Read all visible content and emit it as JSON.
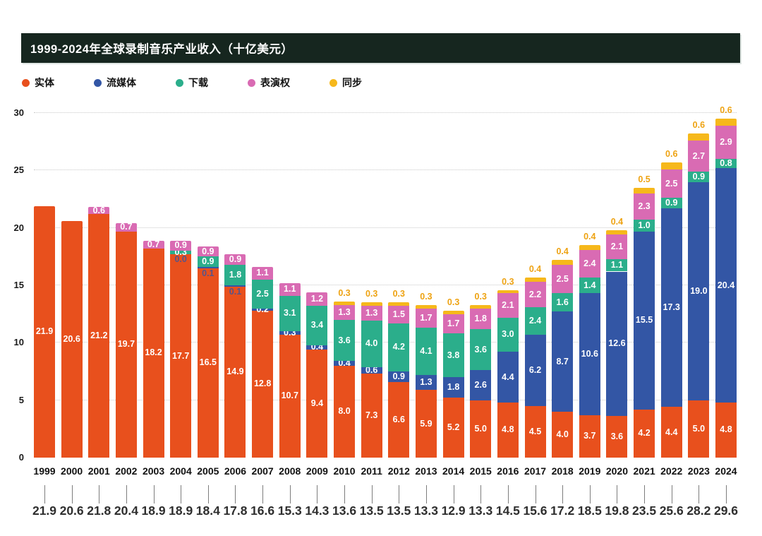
{
  "title": "1999-2024年全球录制音乐产业收入（十亿美元）",
  "colors": {
    "background": "#ffffff",
    "title_bar_bg": "#16261f",
    "title_text": "#ffffff",
    "gridline": "#c9c9c9",
    "axis_text": "#1a1a1a",
    "year_text": "#111111",
    "total_text": "#2e2e2e",
    "tick_line": "#7d7d7d",
    "segment_label_text": "#ffffff"
  },
  "legend": {
    "items": [
      {
        "label": "实体",
        "color": "#e8501d"
      },
      {
        "label": "流媒体",
        "color": "#3356a5"
      },
      {
        "label": "下载",
        "color": "#2bae8b"
      },
      {
        "label": "表演权",
        "color": "#d96bb3"
      },
      {
        "label": "同步",
        "color": "#f6b81b"
      }
    ]
  },
  "chart_data": {
    "type": "bar",
    "stacked": true,
    "title": "1999-2024年全球录制音乐产业收入（十亿美元）",
    "unit": "十亿美元 (USD billions)",
    "legend_position": "top",
    "grid": "dotted-horizontal",
    "ylim": [
      0,
      30
    ],
    "yticks": [
      0,
      5,
      10,
      15,
      20,
      25,
      30
    ],
    "categories": [
      "1999",
      "2000",
      "2001",
      "2002",
      "2003",
      "2004",
      "2005",
      "2006",
      "2007",
      "2008",
      "2009",
      "2010",
      "2011",
      "2012",
      "2013",
      "2014",
      "2015",
      "2016",
      "2017",
      "2018",
      "2019",
      "2020",
      "2021",
      "2022",
      "2023",
      "2024"
    ],
    "series": [
      {
        "name": "实体",
        "key": "physical",
        "color": "#e8501d",
        "values": [
          21.9,
          20.6,
          21.2,
          19.7,
          18.2,
          17.7,
          16.5,
          14.9,
          12.8,
          10.7,
          9.4,
          8.0,
          7.3,
          6.6,
          5.9,
          5.2,
          5.0,
          4.8,
          4.5,
          4.0,
          3.7,
          3.6,
          4.2,
          4.4,
          5.0,
          4.8
        ]
      },
      {
        "name": "流媒体",
        "key": "streaming",
        "color": "#3356a5",
        "values": [
          null,
          null,
          null,
          null,
          null,
          0.0,
          0.1,
          0.1,
          0.2,
          0.3,
          0.4,
          0.4,
          0.6,
          0.9,
          1.3,
          1.8,
          2.6,
          4.4,
          6.2,
          8.7,
          10.6,
          12.6,
          15.5,
          17.3,
          19.0,
          20.4
        ]
      },
      {
        "name": "下载",
        "key": "download",
        "color": "#2bae8b",
        "values": [
          null,
          null,
          null,
          null,
          null,
          0.3,
          0.9,
          1.8,
          2.5,
          3.1,
          3.4,
          3.6,
          4.0,
          4.2,
          4.1,
          3.8,
          3.6,
          3.0,
          2.4,
          1.6,
          1.4,
          1.1,
          1.0,
          0.9,
          0.9,
          0.8
        ]
      },
      {
        "name": "表演权",
        "key": "performance",
        "color": "#d96bb3",
        "values": [
          null,
          null,
          0.6,
          0.7,
          0.7,
          0.9,
          0.9,
          0.9,
          1.1,
          1.1,
          1.2,
          1.3,
          1.3,
          1.5,
          1.7,
          1.7,
          1.8,
          2.1,
          2.2,
          2.5,
          2.4,
          2.1,
          2.3,
          2.5,
          2.7,
          2.9
        ]
      },
      {
        "name": "同步",
        "key": "sync",
        "color": "#f6b81b",
        "label_color": "#eea313",
        "label_position": "above",
        "values": [
          null,
          null,
          null,
          null,
          null,
          null,
          null,
          null,
          null,
          null,
          null,
          0.3,
          0.3,
          0.3,
          0.3,
          0.3,
          0.3,
          0.3,
          0.4,
          0.4,
          0.4,
          0.4,
          0.5,
          0.6,
          0.6,
          0.6
        ]
      }
    ],
    "totals": [
      21.9,
      20.6,
      21.8,
      20.4,
      18.9,
      18.9,
      18.4,
      17.8,
      16.6,
      15.3,
      14.3,
      13.6,
      13.5,
      13.5,
      13.3,
      12.9,
      13.3,
      14.5,
      15.6,
      17.2,
      18.5,
      19.8,
      23.5,
      25.6,
      28.2,
      29.6
    ]
  }
}
